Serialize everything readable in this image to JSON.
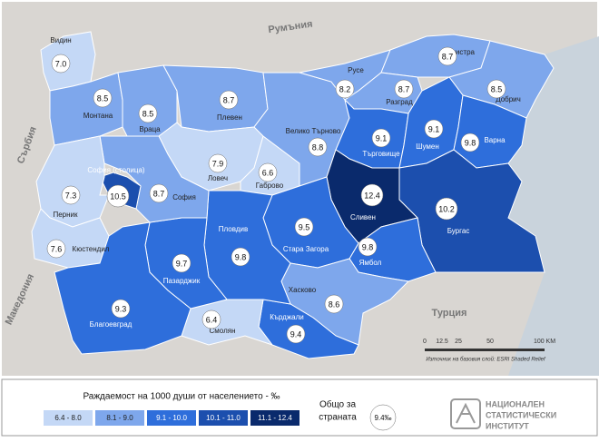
{
  "map": {
    "regions": [
      {
        "name": "Видин",
        "value": "7.0",
        "class": 0
      },
      {
        "name": "Монтана",
        "value": "8.5",
        "class": 1
      },
      {
        "name": "Враца",
        "value": "8.5",
        "class": 1
      },
      {
        "name": "Плевен",
        "value": "8.7",
        "class": 1
      },
      {
        "name": "Ловеч",
        "value": "7.9",
        "class": 0
      },
      {
        "name": "Габрово",
        "value": "6.6",
        "class": 0
      },
      {
        "name": "Велико Търново",
        "value": "8.8",
        "class": 1
      },
      {
        "name": "Русе",
        "value": "8.2",
        "class": 1
      },
      {
        "name": "Силистра",
        "value": "8.7",
        "class": 1
      },
      {
        "name": "Разград",
        "value": "8.7",
        "class": 1
      },
      {
        "name": "Добрич",
        "value": "8.5",
        "class": 1
      },
      {
        "name": "Търговище",
        "value": "9.1",
        "class": 2
      },
      {
        "name": "Шумен",
        "value": "9.1",
        "class": 2
      },
      {
        "name": "Варна",
        "value": "9.8",
        "class": 2
      },
      {
        "name": "Бургас",
        "value": "10.2",
        "class": 3
      },
      {
        "name": "Сливен",
        "value": "12.4",
        "class": 4
      },
      {
        "name": "Ямбол",
        "value": "9.8",
        "class": 2
      },
      {
        "name": "Стара Загора",
        "value": "9.5",
        "class": 2
      },
      {
        "name": "Хасково",
        "value": "8.6",
        "class": 1
      },
      {
        "name": "Кърджали",
        "value": "9.4",
        "class": 2
      },
      {
        "name": "Смолян",
        "value": "6.4",
        "class": 0
      },
      {
        "name": "Пловдив",
        "value": "9.8",
        "class": 2
      },
      {
        "name": "Пазарджик",
        "value": "9.7",
        "class": 2
      },
      {
        "name": "София",
        "value": "8.7",
        "class": 1
      },
      {
        "name": "София (столица)",
        "value": "10.5",
        "class": 3
      },
      {
        "name": "Перник",
        "value": "7.3",
        "class": 0
      },
      {
        "name": "Кюстендил",
        "value": "7.6",
        "class": 0
      },
      {
        "name": "Благоевград",
        "value": "9.3",
        "class": 2
      }
    ],
    "neighbors": [
      "Румъния",
      "Сърбия",
      "Македония",
      "Турция"
    ],
    "scale": {
      "ticks": [
        "0",
        "12.5",
        "25",
        "50",
        "100 KM"
      ]
    },
    "source": "Източник на базовия слой: ESRI Shaded Relief"
  },
  "legend": {
    "title": "Раждаемост на 1000 души от населението - ‰",
    "classes": [
      {
        "label": "6.4 - 8.0",
        "color": "#c4d8f6"
      },
      {
        "label": "8.1 - 9.0",
        "color": "#7ea7ec"
      },
      {
        "label": "9.1 - 10.0",
        "color": "#2e6edb"
      },
      {
        "label": "10.1 - 11.0",
        "color": "#1c4fae"
      },
      {
        "label": "11.1 - 12.4",
        "color": "#0a2a6c"
      }
    ],
    "total_label": [
      "Общо за",
      "страната"
    ],
    "total_value": "9.4‰"
  },
  "logo": [
    "НАЦИОНАЛЕН",
    "СТАТИСТИЧЕСКИ",
    "ИНСТИТУТ"
  ]
}
